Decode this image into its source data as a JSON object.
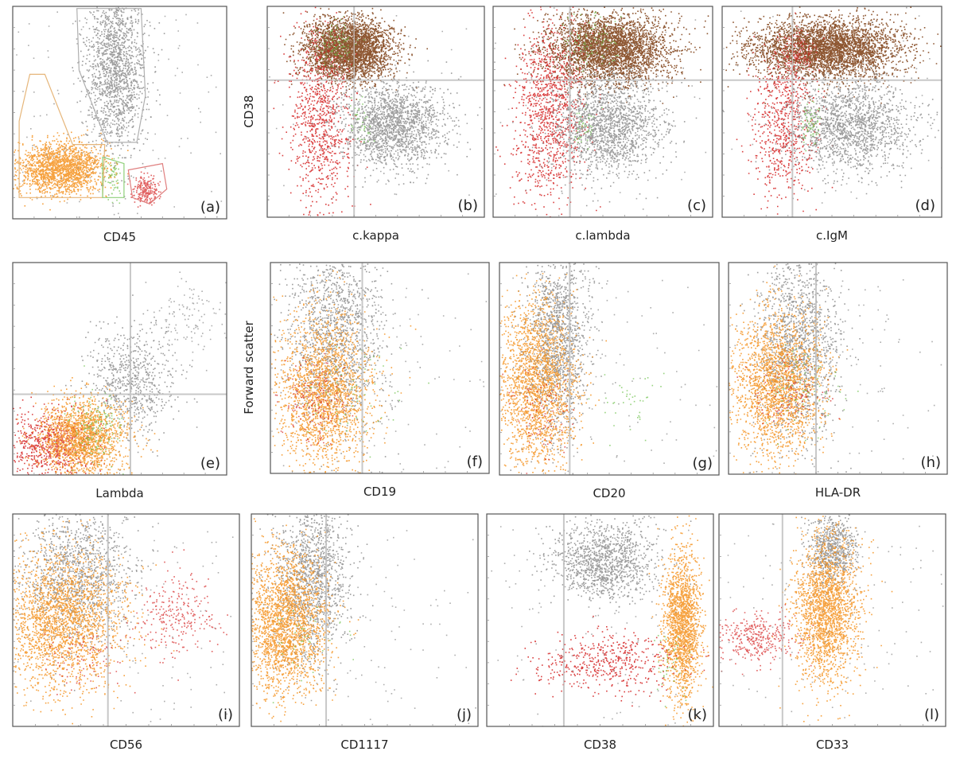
{
  "colors": {
    "grey": "#8c8c8c",
    "orange": "#f5921e",
    "red": "#d42020",
    "green": "#6cc04a",
    "brown": "#7a3a0e",
    "gate_orange": "#e6b67a",
    "gate_green": "#8fd07a",
    "gate_red": "#e08080",
    "gate_grey": "#b0b0b0",
    "quadrant": "#c8c8c8",
    "frame": "#555555"
  },
  "y_labels": {
    "row1": "CD38",
    "row2": "Forward scatter"
  },
  "chart_data": [
    {
      "type": "scatter",
      "panel": "(a)",
      "xlabel": "CD45",
      "xlim": [
        0,
        100
      ],
      "ylim": [
        0,
        100
      ],
      "quadrant": null,
      "gates": [
        {
          "color": "gate_grey",
          "points": [
            [
              30,
              99
            ],
            [
              60,
              99
            ],
            [
              62,
              58
            ],
            [
              58,
              36
            ],
            [
              44,
              36
            ],
            [
              31,
              70
            ]
          ]
        },
        {
          "color": "gate_orange",
          "points": [
            [
              8,
              68
            ],
            [
              15,
              68
            ],
            [
              28,
              35
            ],
            [
              43,
              35
            ],
            [
              42,
              10
            ],
            [
              3,
              10
            ],
            [
              3,
              46
            ]
          ]
        },
        {
          "color": "gate_green",
          "points": [
            [
              42,
              29
            ],
            [
              52,
              26
            ],
            [
              52,
              10
            ],
            [
              42,
              10
            ]
          ]
        },
        {
          "color": "gate_red",
          "points": [
            [
              54,
              23
            ],
            [
              70,
              26
            ],
            [
              72,
              14
            ],
            [
              64,
              7
            ],
            [
              56,
              10
            ]
          ]
        }
      ],
      "populations": [
        {
          "color": "grey",
          "x": 48,
          "y": 72,
          "sx": 7,
          "sy": 20,
          "n": 1600
        },
        {
          "color": "orange",
          "x": 22,
          "y": 24,
          "sx": 10,
          "sy": 6,
          "n": 1800
        },
        {
          "color": "green",
          "x": 47,
          "y": 20,
          "sx": 2,
          "sy": 5,
          "n": 60
        },
        {
          "color": "red",
          "x": 62,
          "y": 14,
          "sx": 3,
          "sy": 3,
          "n": 220
        },
        {
          "color": "grey",
          "x": 50,
          "y": 50,
          "sx": 40,
          "sy": 40,
          "n": 250
        }
      ]
    },
    {
      "type": "scatter",
      "panel": "(b)",
      "xlabel": "c.kappa",
      "xlim": [
        0,
        100
      ],
      "ylim": [
        0,
        100
      ],
      "quadrant": [
        40,
        65
      ],
      "populations": [
        {
          "color": "brown",
          "x": 37,
          "y": 80,
          "sx": 10,
          "sy": 7,
          "n": 3200
        },
        {
          "color": "red",
          "x": 24,
          "y": 45,
          "sx": 7,
          "sy": 22,
          "n": 900
        },
        {
          "color": "grey",
          "x": 57,
          "y": 44,
          "sx": 12,
          "sy": 10,
          "n": 1700
        },
        {
          "color": "green",
          "x": 32,
          "y": 82,
          "sx": 5,
          "sy": 5,
          "n": 90
        },
        {
          "color": "green",
          "x": 43,
          "y": 45,
          "sx": 3,
          "sy": 6,
          "n": 40
        },
        {
          "color": "grey",
          "x": 50,
          "y": 50,
          "sx": 40,
          "sy": 40,
          "n": 120
        }
      ]
    },
    {
      "type": "scatter",
      "panel": "(c)",
      "xlabel": "c.lambda",
      "xlim": [
        0,
        100
      ],
      "ylim": [
        0,
        100
      ],
      "quadrant": [
        35,
        65
      ],
      "populations": [
        {
          "color": "brown",
          "x": 52,
          "y": 80,
          "sx": 14,
          "sy": 8,
          "n": 3400
        },
        {
          "color": "red",
          "x": 25,
          "y": 50,
          "sx": 8,
          "sy": 22,
          "n": 1100
        },
        {
          "color": "grey",
          "x": 52,
          "y": 44,
          "sx": 12,
          "sy": 12,
          "n": 1700
        },
        {
          "color": "green",
          "x": 45,
          "y": 83,
          "sx": 6,
          "sy": 6,
          "n": 90
        },
        {
          "color": "green",
          "x": 42,
          "y": 42,
          "sx": 3,
          "sy": 5,
          "n": 40
        },
        {
          "color": "grey",
          "x": 50,
          "y": 50,
          "sx": 40,
          "sy": 40,
          "n": 120
        }
      ]
    },
    {
      "type": "scatter",
      "panel": "(d)",
      "xlabel": "c.IgM",
      "xlim": [
        0,
        100
      ],
      "ylim": [
        0,
        100
      ],
      "quadrant": [
        32,
        65
      ],
      "populations": [
        {
          "color": "brown",
          "x": 48,
          "y": 80,
          "sx": 17,
          "sy": 7,
          "n": 3600
        },
        {
          "color": "red",
          "x": 28,
          "y": 45,
          "sx": 7,
          "sy": 18,
          "n": 700
        },
        {
          "color": "grey",
          "x": 58,
          "y": 44,
          "sx": 14,
          "sy": 11,
          "n": 1600
        },
        {
          "color": "red",
          "x": 35,
          "y": 78,
          "sx": 4,
          "sy": 5,
          "n": 120
        },
        {
          "color": "green",
          "x": 40,
          "y": 45,
          "sx": 2,
          "sy": 6,
          "n": 70
        },
        {
          "color": "grey",
          "x": 50,
          "y": 50,
          "sx": 40,
          "sy": 40,
          "n": 120
        }
      ]
    },
    {
      "type": "scatter",
      "panel": "(e)",
      "xlabel": "Lambda",
      "xlim": [
        0,
        100
      ],
      "ylim": [
        0,
        100
      ],
      "quadrant": [
        55,
        38
      ],
      "populations": [
        {
          "color": "red",
          "x": 16,
          "y": 14,
          "sx": 11,
          "sy": 8,
          "n": 700
        },
        {
          "color": "grey",
          "x": 55,
          "y": 44,
          "sx": 10,
          "sy": 13,
          "n": 700
        },
        {
          "color": "orange",
          "x": 32,
          "y": 18,
          "sx": 10,
          "sy": 9,
          "n": 1700
        },
        {
          "color": "green",
          "x": 38,
          "y": 22,
          "sx": 6,
          "sy": 8,
          "n": 150
        },
        {
          "color": "grey",
          "x": 80,
          "y": 75,
          "sx": 9,
          "sy": 10,
          "n": 120
        }
      ]
    },
    {
      "type": "scatter",
      "panel": "(f)",
      "xlabel": "CD19",
      "xlim": [
        0,
        100
      ],
      "ylim": [
        0,
        100
      ],
      "quadrant": [
        42,
        null
      ],
      "populations": [
        {
          "color": "grey",
          "x": 30,
          "y": 68,
          "sx": 11,
          "sy": 22,
          "n": 1400
        },
        {
          "color": "orange",
          "x": 24,
          "y": 38,
          "sx": 11,
          "sy": 18,
          "n": 2000
        },
        {
          "color": "red",
          "x": 20,
          "y": 35,
          "sx": 8,
          "sy": 10,
          "n": 150
        },
        {
          "color": "green",
          "x": 35,
          "y": 40,
          "sx": 12,
          "sy": 12,
          "n": 60
        },
        {
          "color": "grey",
          "x": 50,
          "y": 50,
          "sx": 35,
          "sy": 35,
          "n": 150
        }
      ]
    },
    {
      "type": "scatter",
      "panel": "(g)",
      "xlabel": "CD20",
      "xlim": [
        0,
        100
      ],
      "ylim": [
        0,
        100
      ],
      "quadrant": [
        32,
        null
      ],
      "populations": [
        {
          "color": "grey",
          "x": 26,
          "y": 65,
          "sx": 7,
          "sy": 22,
          "n": 1400
        },
        {
          "color": "orange",
          "x": 17,
          "y": 42,
          "sx": 9,
          "sy": 20,
          "n": 2000
        },
        {
          "color": "green",
          "x": 58,
          "y": 36,
          "sx": 8,
          "sy": 7,
          "n": 40
        },
        {
          "color": "red",
          "x": 20,
          "y": 30,
          "sx": 7,
          "sy": 10,
          "n": 90
        },
        {
          "color": "grey",
          "x": 50,
          "y": 50,
          "sx": 35,
          "sy": 35,
          "n": 150
        }
      ]
    },
    {
      "type": "scatter",
      "panel": "(h)",
      "xlabel": "HLA-DR",
      "xlim": [
        0,
        100
      ],
      "ylim": [
        0,
        100
      ],
      "quadrant": [
        40,
        null
      ],
      "populations": [
        {
          "color": "grey",
          "x": 32,
          "y": 62,
          "sx": 9,
          "sy": 22,
          "n": 1400
        },
        {
          "color": "orange",
          "x": 22,
          "y": 43,
          "sx": 10,
          "sy": 17,
          "n": 2000
        },
        {
          "color": "green",
          "x": 35,
          "y": 40,
          "sx": 10,
          "sy": 10,
          "n": 70
        },
        {
          "color": "red",
          "x": 28,
          "y": 38,
          "sx": 10,
          "sy": 9,
          "n": 100
        },
        {
          "color": "grey",
          "x": 50,
          "y": 50,
          "sx": 35,
          "sy": 35,
          "n": 150
        }
      ]
    },
    {
      "type": "scatter",
      "panel": "(i)",
      "xlabel": "CD56",
      "xlim": [
        0,
        100
      ],
      "ylim": [
        0,
        100
      ],
      "quadrant": [
        42,
        null
      ],
      "populations": [
        {
          "color": "grey",
          "x": 28,
          "y": 72,
          "sx": 12,
          "sy": 16,
          "n": 1200
        },
        {
          "color": "orange",
          "x": 22,
          "y": 50,
          "sx": 13,
          "sy": 17,
          "n": 2200
        },
        {
          "color": "red",
          "x": 72,
          "y": 52,
          "sx": 9,
          "sy": 9,
          "n": 260
        },
        {
          "color": "red",
          "x": 32,
          "y": 32,
          "sx": 10,
          "sy": 8,
          "n": 80
        },
        {
          "color": "grey",
          "x": 55,
          "y": 55,
          "sx": 35,
          "sy": 35,
          "n": 150
        }
      ]
    },
    {
      "type": "scatter",
      "panel": "(j)",
      "xlabel": "CD1117",
      "xlim": [
        0,
        100
      ],
      "ylim": [
        0,
        100
      ],
      "quadrant": [
        33,
        null
      ],
      "populations": [
        {
          "color": "grey",
          "x": 27,
          "y": 72,
          "sx": 8,
          "sy": 20,
          "n": 1300
        },
        {
          "color": "orange",
          "x": 15,
          "y": 50,
          "sx": 9,
          "sy": 17,
          "n": 2200
        },
        {
          "color": "green",
          "x": 25,
          "y": 42,
          "sx": 8,
          "sy": 10,
          "n": 40
        },
        {
          "color": "grey",
          "x": 50,
          "y": 50,
          "sx": 35,
          "sy": 35,
          "n": 150
        }
      ]
    },
    {
      "type": "scatter",
      "panel": "(k)",
      "xlabel": "CD38",
      "xlim": [
        0,
        100
      ],
      "ylim": [
        0,
        100
      ],
      "quadrant": [
        34,
        null
      ],
      "populations": [
        {
          "color": "grey",
          "x": 52,
          "y": 78,
          "sx": 11,
          "sy": 9,
          "n": 1200
        },
        {
          "color": "orange",
          "x": 86,
          "y": 48,
          "sx": 4,
          "sy": 18,
          "n": 1700
        },
        {
          "color": "red",
          "x": 52,
          "y": 30,
          "sx": 16,
          "sy": 7,
          "n": 500
        },
        {
          "color": "green",
          "x": 80,
          "y": 30,
          "sx": 4,
          "sy": 8,
          "n": 40
        },
        {
          "color": "grey",
          "x": 50,
          "y": 50,
          "sx": 35,
          "sy": 35,
          "n": 150
        }
      ]
    },
    {
      "type": "scatter",
      "panel": "(l)",
      "xlabel": "CD33",
      "xlim": [
        0,
        100
      ],
      "ylim": [
        0,
        100
      ],
      "quadrant": [
        28,
        null
      ],
      "populations": [
        {
          "color": "grey",
          "x": 50,
          "y": 84,
          "sx": 5,
          "sy": 8,
          "n": 700
        },
        {
          "color": "orange",
          "x": 47,
          "y": 55,
          "sx": 7,
          "sy": 17,
          "n": 2000
        },
        {
          "color": "red",
          "x": 16,
          "y": 42,
          "sx": 9,
          "sy": 6,
          "n": 350
        },
        {
          "color": "grey",
          "x": 50,
          "y": 50,
          "sx": 35,
          "sy": 35,
          "n": 150
        }
      ]
    }
  ]
}
